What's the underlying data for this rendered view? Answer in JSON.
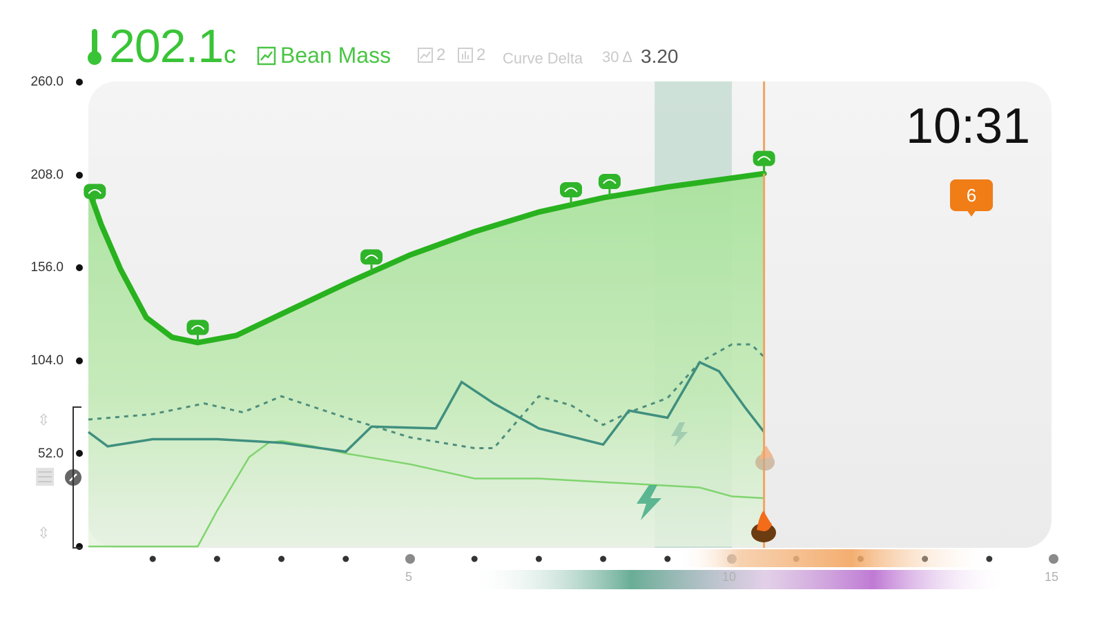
{
  "header": {
    "temperature_value": "202.1",
    "temperature_unit": "c",
    "bean_mass_label": "Bean Mass",
    "stat_a": "2",
    "stat_b": "2",
    "curve_delta_label": "Curve Delta",
    "delta_prefix": "30 Δ",
    "delta_value": "3.20"
  },
  "y_axis": {
    "ticks": [
      "260.0",
      "208.0",
      "156.0",
      "104.0",
      "52.0"
    ]
  },
  "x_axis": {
    "tick_labels": [
      "5",
      "10",
      "15"
    ]
  },
  "timer": "10:31",
  "event_badge": "6",
  "colors": {
    "accent_green": "#39c437",
    "teal_line": "#3f8f7f",
    "orange": "#f07d16",
    "purple": "#b86bd0"
  },
  "chart_data": {
    "type": "line",
    "title": "",
    "xlabel": "",
    "ylabel": "",
    "xlim": [
      0,
      15
    ],
    "ylim": [
      0,
      260
    ],
    "x_ticks": [
      5,
      10,
      15
    ],
    "series": [
      {
        "x": [
          0,
          0.2,
          0.5,
          0.9,
          1.3,
          1.7,
          2.3,
          3,
          4,
          5,
          6,
          7,
          8,
          9,
          10,
          10.5
        ],
        "values": [
          200,
          180,
          155,
          128,
          117,
          114,
          118,
          130,
          147,
          163,
          176,
          187,
          195,
          201,
          206,
          208.5
        ]
      },
      {
        "x": [
          0,
          0.3,
          1,
          2,
          3,
          4,
          4.4,
          5.4,
          5.8,
          6.3,
          7,
          8,
          8.4,
          9,
          9.5,
          9.8,
          10.2,
          10.5
        ],
        "values": [
          64,
          56,
          60,
          60,
          58,
          53,
          67,
          66,
          92,
          80,
          66,
          57,
          76,
          72,
          103,
          98,
          78,
          64
        ]
      },
      {
        "x": [
          0,
          1,
          1.8,
          2.4,
          3,
          4,
          5,
          6,
          6.3,
          7,
          7.5,
          8,
          8.4,
          9,
          9.5,
          10,
          10.3,
          10.5
        ],
        "values": [
          71,
          74,
          80,
          75,
          84,
          72,
          61,
          55,
          55,
          84,
          79,
          68,
          75,
          83,
          103,
          113,
          113,
          106
        ]
      },
      {
        "x": [
          0,
          1.7,
          2,
          2.5,
          2.8,
          3,
          3.5,
          4,
          5,
          6,
          7,
          8,
          8.5,
          9,
          9.5,
          10,
          10.5
        ],
        "values": [
          0,
          0,
          20,
          50,
          58,
          59,
          56,
          52,
          46,
          38,
          38,
          36,
          35,
          34,
          33,
          28,
          27
        ]
      }
    ],
    "markers_x": [
      0.1,
      1.7,
      4.4,
      7.5,
      8.1,
      10.5
    ],
    "shaded_band_x": [
      8.8,
      10
    ]
  }
}
